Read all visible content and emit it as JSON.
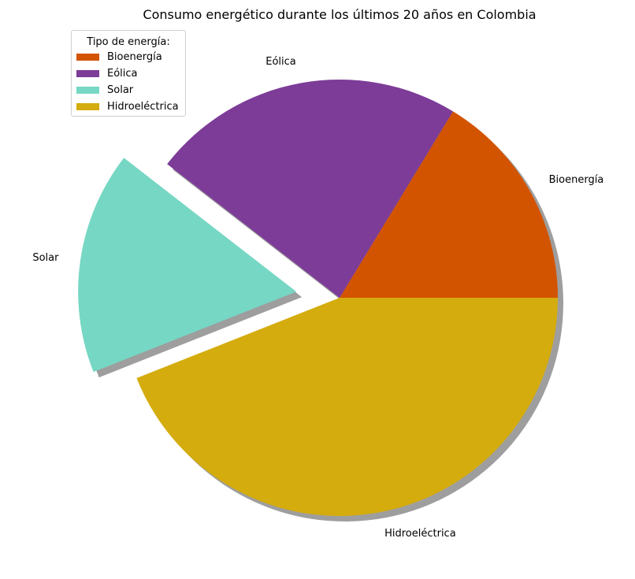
{
  "chart_data": {
    "type": "pie",
    "title": "Consumo energético durante los últimos 20 años en Colombia",
    "legend": {
      "title": "Tipo de energía:",
      "placement": "top-left"
    },
    "slices": [
      {
        "label": "Bioenergía",
        "value": 16.3,
        "color": "#d35400",
        "explode": 0
      },
      {
        "label": "Eólica",
        "value": 23.2,
        "color": "#7d3c98",
        "explode": 0
      },
      {
        "label": "Solar",
        "value": 16.5,
        "color": "#76d7c4",
        "explode": 0.2
      },
      {
        "label": "Hidroeléctrica",
        "value": 44.0,
        "color": "#d4ac0d",
        "explode": 0
      }
    ],
    "shadow": true,
    "start_angle_deg": 0,
    "direction": "counterclockwise"
  }
}
